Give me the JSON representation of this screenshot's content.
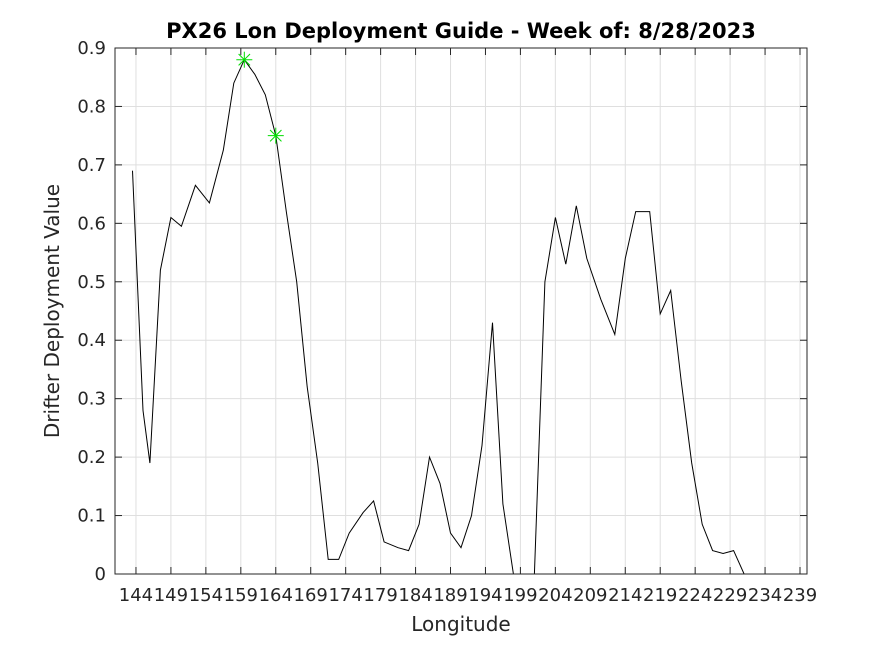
{
  "chart_data": {
    "type": "line",
    "title": "PX26 Lon Deployment Guide - Week of: 8/28/2023",
    "xlabel": "Longitude",
    "ylabel": "Drifter Deployment Value",
    "xlim": [
      141,
      240
    ],
    "ylim": [
      0,
      0.9
    ],
    "xticks": [
      144,
      149,
      154,
      159,
      164,
      169,
      174,
      179,
      184,
      189,
      194,
      199,
      204,
      209,
      214,
      219,
      224,
      229,
      234,
      239
    ],
    "yticks": [
      0,
      0.1,
      0.2,
      0.3,
      0.4,
      0.5,
      0.6,
      0.7,
      0.8,
      0.9
    ],
    "grid": true,
    "series": [
      {
        "color": "#000000",
        "x": [
          143.5,
          145,
          146,
          147.5,
          149,
          150.5,
          152.5,
          154.5,
          156.5,
          158,
          159.5,
          161,
          162.5,
          164,
          165.5,
          167,
          168.5,
          170,
          171.5,
          173,
          174.5,
          176.5,
          178,
          179.5,
          181.5,
          183,
          184.5,
          186,
          187.5,
          189,
          190.5,
          192,
          193.5,
          195,
          196.5,
          198,
          199.5,
          201,
          202.5,
          204,
          205.5,
          207,
          208.5,
          210.5,
          212.5,
          214,
          215.5,
          217.5,
          219,
          220.5,
          222,
          223.5,
          225,
          226.5,
          228,
          229.5,
          231,
          232.5,
          234,
          235.5,
          237,
          238.5
        ],
        "y": [
          0.69,
          0.28,
          0.19,
          0.52,
          0.61,
          0.595,
          0.665,
          0.635,
          0.725,
          0.84,
          0.88,
          0.855,
          0.82,
          0.75,
          0.62,
          0.5,
          0.32,
          0.19,
          0.025,
          0.025,
          0.07,
          0.105,
          0.125,
          0.055,
          0.045,
          0.04,
          0.085,
          0.2,
          0.155,
          0.07,
          0.045,
          0.1,
          0.22,
          0.43,
          0.12,
          0.0,
          0.0,
          0.0,
          0.5,
          0.61,
          0.53,
          0.63,
          0.54,
          0.47,
          0.41,
          0.54,
          0.62,
          0.62,
          0.445,
          0.485,
          0.33,
          0.19,
          0.085,
          0.04,
          0.035,
          0.04,
          0.0,
          0.0,
          0.0,
          0.0,
          0.0,
          0.0
        ]
      }
    ],
    "highlight_points": {
      "color": "#00dd00",
      "marker": "asterisk",
      "points": [
        [
          159.5,
          0.88
        ],
        [
          164,
          0.75
        ]
      ]
    }
  }
}
